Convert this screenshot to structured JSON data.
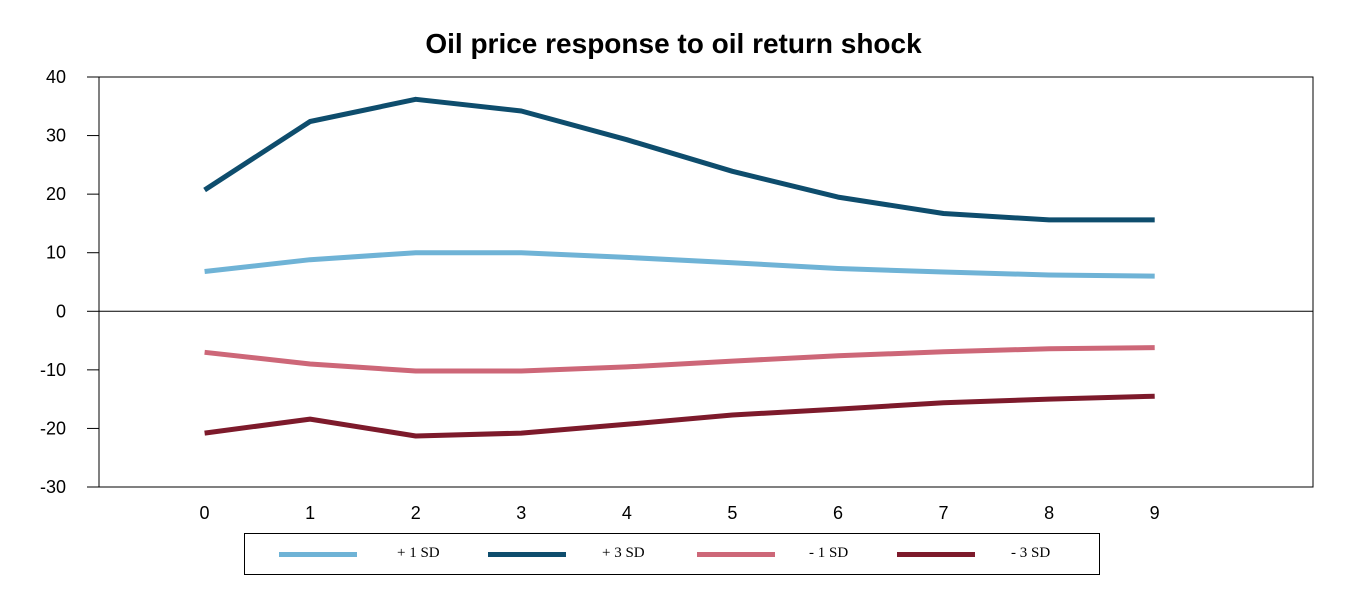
{
  "chart_data": {
    "type": "line",
    "title": "Oil price response to oil return shock",
    "x": [
      0,
      1,
      2,
      3,
      4,
      5,
      6,
      7,
      8,
      9
    ],
    "xlim": [
      -1,
      10.5
    ],
    "ylim": [
      -30,
      40
    ],
    "yticks": [
      40,
      30,
      20,
      10,
      0,
      -10,
      -20,
      -30
    ],
    "legend_position": "bottom",
    "series": [
      {
        "name": "+ 1 SD",
        "color": "#6fb3d6",
        "values": [
          6.8,
          8.8,
          10.0,
          10.0,
          9.2,
          8.3,
          7.3,
          6.7,
          6.2,
          6.0
        ]
      },
      {
        "name": "+ 3 SD",
        "color": "#0e4d6d",
        "values": [
          20.7,
          32.4,
          36.2,
          34.2,
          29.3,
          23.9,
          19.5,
          16.7,
          15.6,
          15.6
        ]
      },
      {
        "name": "- 1 SD",
        "color": "#cd6778",
        "values": [
          -7.0,
          -9.0,
          -10.2,
          -10.2,
          -9.5,
          -8.5,
          -7.6,
          -6.9,
          -6.4,
          -6.2
        ]
      },
      {
        "name": "- 3 SD",
        "color": "#7d1a2b",
        "values": [
          -20.8,
          -18.4,
          -21.3,
          -20.8,
          -19.3,
          -17.7,
          -16.7,
          -15.6,
          -15.0,
          -14.5
        ]
      }
    ]
  }
}
